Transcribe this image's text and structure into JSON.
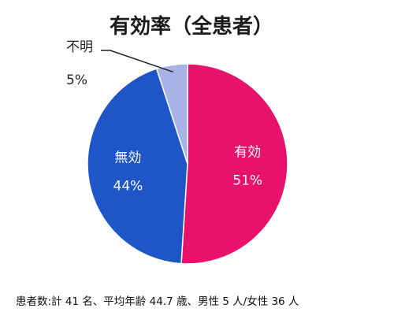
{
  "chart_data": {
    "type": "pie",
    "title": "有効率（全患者）",
    "categories": [
      "有効",
      "無効",
      "不明"
    ],
    "values": [
      51,
      44,
      5
    ],
    "value_labels": [
      "51%",
      "44%",
      "5%"
    ],
    "colors": [
      "#e8116b",
      "#1e56c8",
      "#a7b2e6"
    ],
    "start_angle_deg": 0,
    "direction": "clockwise",
    "legend": "none",
    "footnote": "患者数:計 41 名、平均年齢 44.7 歳、男性 5 人/女性 36 人"
  }
}
